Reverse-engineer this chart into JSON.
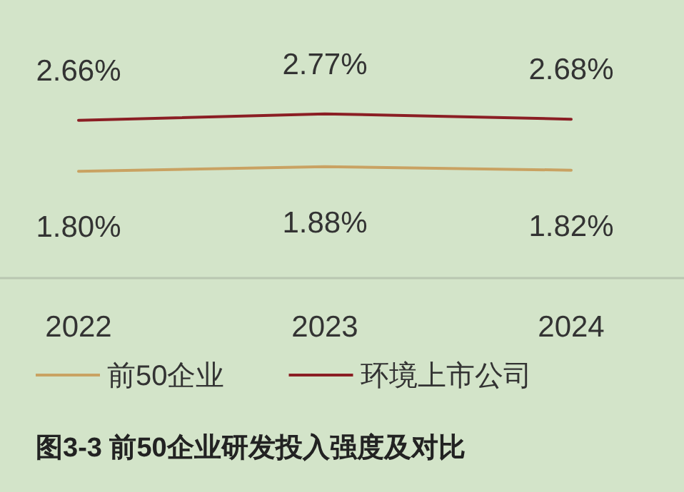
{
  "chart_data": {
    "type": "line",
    "title": "图3-3 前50企业研发投入强度及对比",
    "categories": [
      "2022",
      "2023",
      "2024"
    ],
    "series": [
      {
        "name": "前50企业",
        "color": "#c9a262",
        "values": [
          1.8,
          1.88,
          1.82
        ],
        "value_labels": [
          "1.80%",
          "1.88%",
          "1.82%"
        ]
      },
      {
        "name": "环境上市公司",
        "color": "#8b1e24",
        "values": [
          2.66,
          2.77,
          2.68
        ],
        "value_labels": [
          "2.66%",
          "2.77%",
          "2.68%"
        ]
      }
    ],
    "tick_labels": "x",
    "legend": "bottom"
  }
}
